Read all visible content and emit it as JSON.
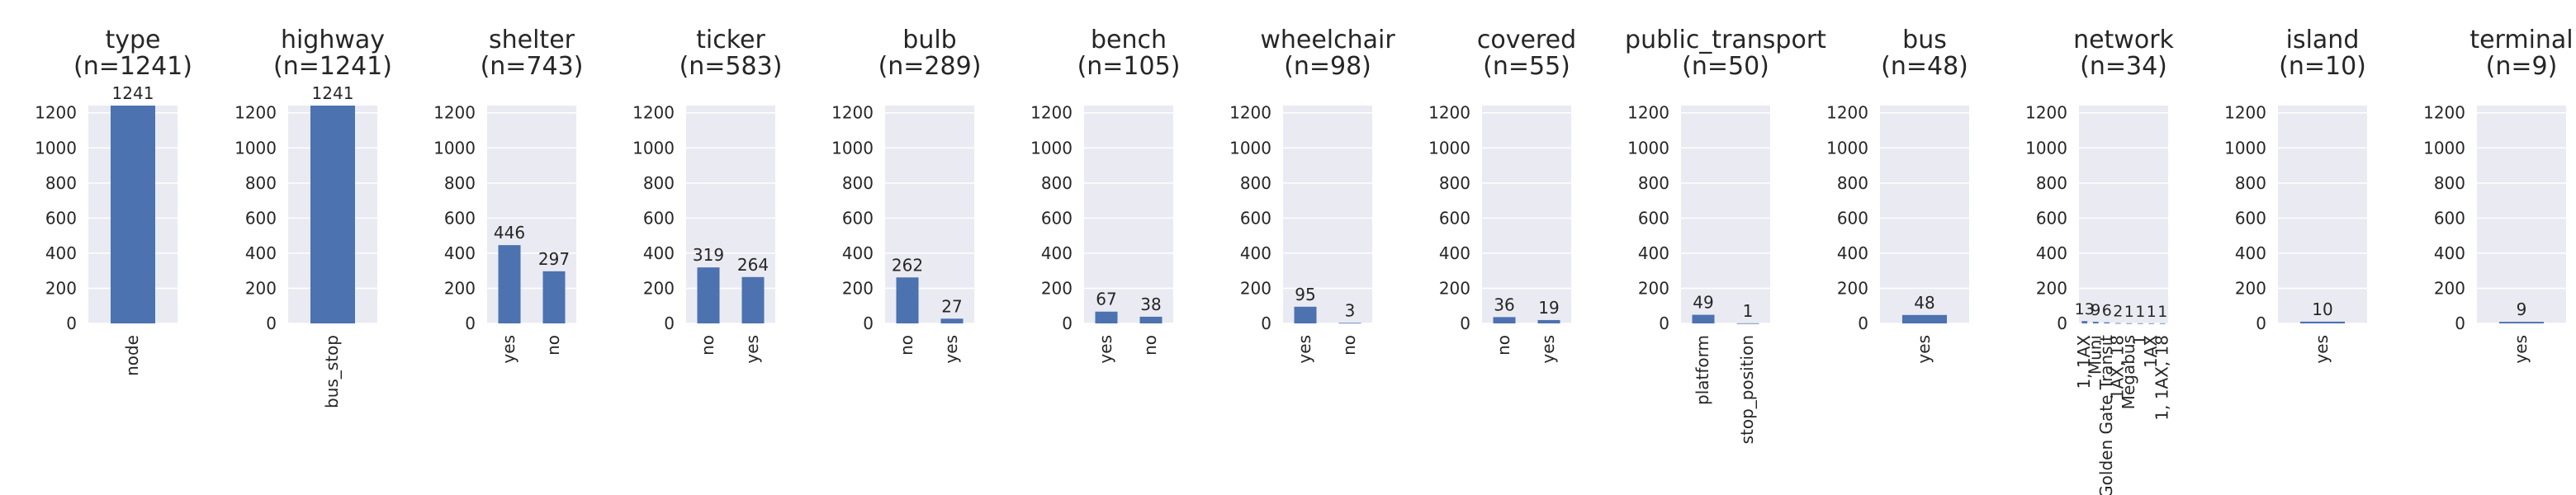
{
  "chart_data": [
    {
      "type": "bar",
      "title": "type\n(n=1241)",
      "categories": [
        "node"
      ],
      "values": [
        1241
      ],
      "ylim": [
        0,
        1241
      ],
      "yticks": [
        0,
        200,
        400,
        600,
        800,
        1000,
        1200
      ],
      "grid": true
    },
    {
      "type": "bar",
      "title": "highway\n(n=1241)",
      "categories": [
        "bus_stop"
      ],
      "values": [
        1241
      ],
      "ylim": [
        0,
        1241
      ],
      "yticks": [
        0,
        200,
        400,
        600,
        800,
        1000,
        1200
      ],
      "grid": true
    },
    {
      "type": "bar",
      "title": "shelter\n(n=743)",
      "categories": [
        "yes",
        "no"
      ],
      "values": [
        446,
        297
      ],
      "ylim": [
        0,
        1241
      ],
      "yticks": [
        0,
        200,
        400,
        600,
        800,
        1000,
        1200
      ],
      "grid": true
    },
    {
      "type": "bar",
      "title": "ticker\n(n=583)",
      "categories": [
        "no",
        "yes"
      ],
      "values": [
        319,
        264
      ],
      "ylim": [
        0,
        1241
      ],
      "yticks": [
        0,
        200,
        400,
        600,
        800,
        1000,
        1200
      ],
      "grid": true
    },
    {
      "type": "bar",
      "title": "bulb\n(n=289)",
      "categories": [
        "no",
        "yes"
      ],
      "values": [
        262,
        27
      ],
      "ylim": [
        0,
        1241
      ],
      "yticks": [
        0,
        200,
        400,
        600,
        800,
        1000,
        1200
      ],
      "grid": true
    },
    {
      "type": "bar",
      "title": "bench\n(n=105)",
      "categories": [
        "yes",
        "no"
      ],
      "values": [
        67,
        38
      ],
      "ylim": [
        0,
        1241
      ],
      "yticks": [
        0,
        200,
        400,
        600,
        800,
        1000,
        1200
      ],
      "grid": true
    },
    {
      "type": "bar",
      "title": "wheelchair\n(n=98)",
      "categories": [
        "yes",
        "no"
      ],
      "values": [
        95,
        3
      ],
      "ylim": [
        0,
        1241
      ],
      "yticks": [
        0,
        200,
        400,
        600,
        800,
        1000,
        1200
      ],
      "grid": true
    },
    {
      "type": "bar",
      "title": "covered\n(n=55)",
      "categories": [
        "no",
        "yes"
      ],
      "values": [
        36,
        19
      ],
      "ylim": [
        0,
        1241
      ],
      "yticks": [
        0,
        200,
        400,
        600,
        800,
        1000,
        1200
      ],
      "grid": true
    },
    {
      "type": "bar",
      "title": "public_transport\n(n=50)",
      "categories": [
        "platform",
        "stop_position"
      ],
      "values": [
        49,
        1
      ],
      "ylim": [
        0,
        1241
      ],
      "yticks": [
        0,
        200,
        400,
        600,
        800,
        1000,
        1200
      ],
      "grid": true
    },
    {
      "type": "bar",
      "title": "bus\n(n=48)",
      "categories": [
        "yes"
      ],
      "values": [
        48
      ],
      "ylim": [
        0,
        1241
      ],
      "yticks": [
        0,
        200,
        400,
        600,
        800,
        1000,
        1200
      ],
      "grid": true
    },
    {
      "type": "bar",
      "title": "network\n(n=34)",
      "categories": [
        "1, 1AX",
        "Muni",
        "Golden Gate Transit",
        "1AX, 18",
        "Megabus",
        "1",
        "1AX",
        "1, 1AX, 18"
      ],
      "values": [
        13,
        9,
        6,
        2,
        1,
        1,
        1,
        1
      ],
      "ylim": [
        0,
        1241
      ],
      "yticks": [
        0,
        200,
        400,
        600,
        800,
        1000,
        1200
      ],
      "grid": true
    },
    {
      "type": "bar",
      "title": "island\n(n=10)",
      "categories": [
        "yes"
      ],
      "values": [
        10
      ],
      "ylim": [
        0,
        1241
      ],
      "yticks": [
        0,
        200,
        400,
        600,
        800,
        1000,
        1200
      ],
      "grid": true
    },
    {
      "type": "bar",
      "title": "terminal\n(n=9)",
      "categories": [
        "yes"
      ],
      "values": [
        9
      ],
      "ylim": [
        0,
        1241
      ],
      "yticks": [
        0,
        200,
        400,
        600,
        800,
        1000,
        1200
      ],
      "grid": true
    }
  ],
  "colors": {
    "bar": "#4c72b0",
    "plot_background": "#eaeaf2",
    "grid": "#ffffff",
    "text": "#262626"
  }
}
